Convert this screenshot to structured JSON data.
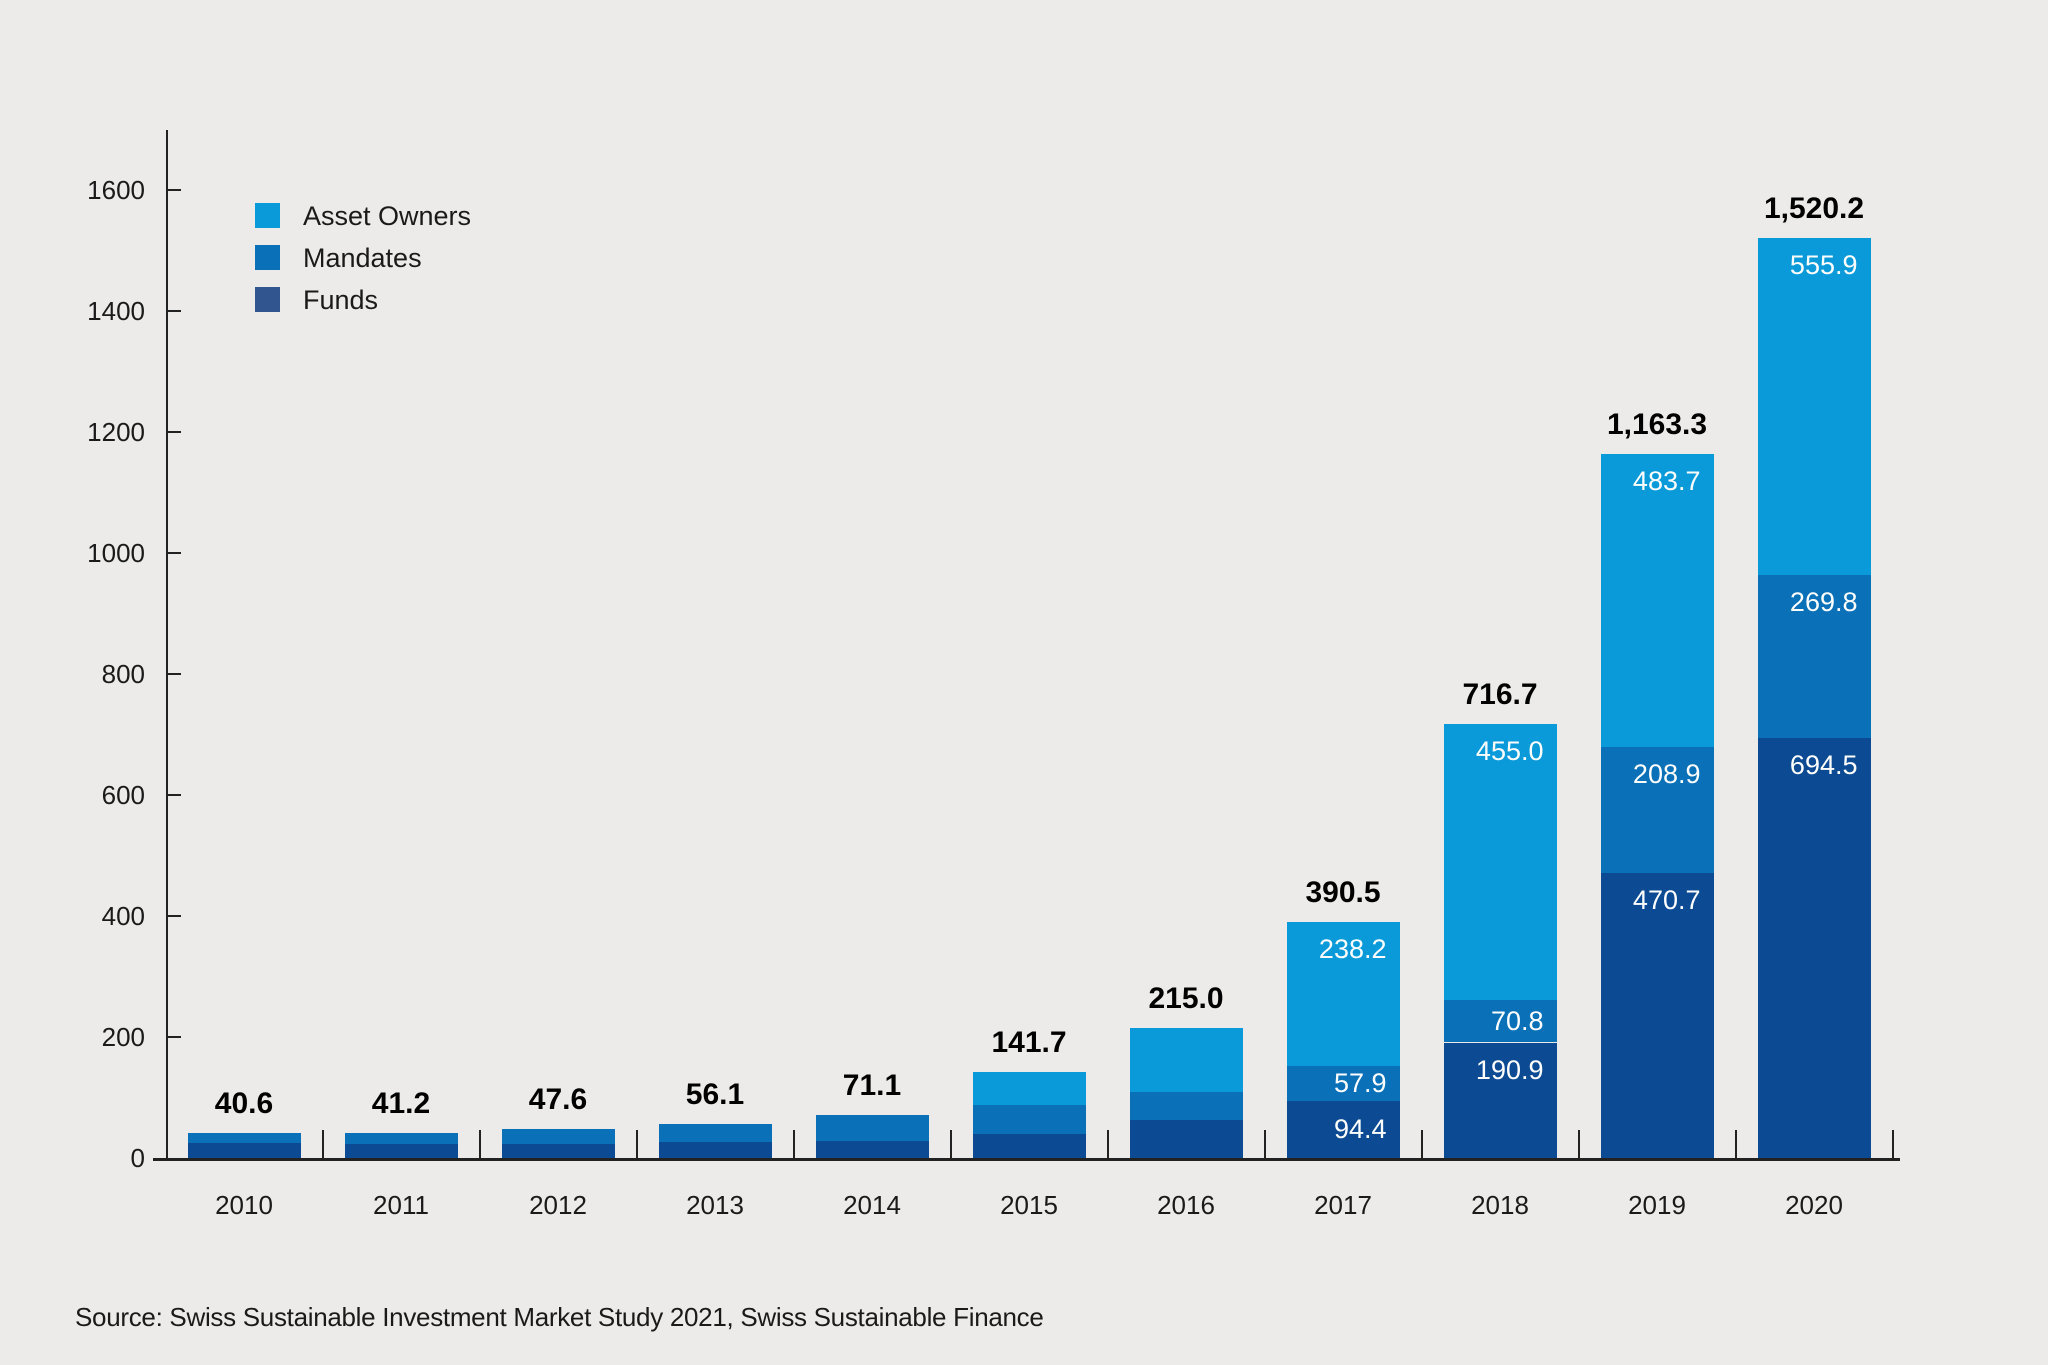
{
  "colors": {
    "background": "#ECEBE9",
    "axis": "#222222",
    "text": "#1A1A1A",
    "total_label": "#000000",
    "segment_label": "#FFFFFF",
    "asset_owners": "#0A9ADA",
    "mandates": "#0A70B8",
    "funds": "#0C4B94",
    "funds_legend_swatch": "#31568F"
  },
  "legend": {
    "items": [
      {
        "label": "Asset Owners",
        "color_key": "asset_owners"
      },
      {
        "label": "Mandates",
        "color_key": "mandates"
      },
      {
        "label": "Funds",
        "color_key": "funds_legend_swatch"
      }
    ]
  },
  "source_note": "Source: Swiss Sustainable Investment Market Study 2021, Swiss Sustainable Finance",
  "chart_data": {
    "type": "bar",
    "stacked": true,
    "grid": false,
    "legend_position": "top-left",
    "categories": [
      "2010",
      "2011",
      "2012",
      "2013",
      "2014",
      "2015",
      "2016",
      "2017",
      "2018",
      "2019",
      "2020"
    ],
    "series": [
      {
        "name": "Funds",
        "color_key": "funds",
        "values": [
          24.2,
          22.9,
          22.6,
          27.1,
          28.6,
          39.0,
          63.3,
          94.4,
          190.9,
          470.7,
          694.5
        ],
        "value_labels": [
          null,
          null,
          null,
          null,
          null,
          null,
          null,
          "94.4",
          "190.9",
          "470.7",
          "694.5"
        ]
      },
      {
        "name": "Mandates",
        "color_key": "mandates",
        "values": [
          16.4,
          18.3,
          25.0,
          29.0,
          42.5,
          48.6,
          46.1,
          57.9,
          70.8,
          208.9,
          269.8
        ],
        "value_labels": [
          null,
          null,
          null,
          null,
          null,
          null,
          null,
          "57.9",
          "70.8",
          "208.9",
          "269.8"
        ]
      },
      {
        "name": "Asset Owners",
        "color_key": "asset_owners",
        "values": [
          0,
          0,
          0,
          0,
          0,
          54.1,
          105.6,
          238.2,
          455.0,
          483.7,
          555.9
        ],
        "value_labels": [
          null,
          null,
          null,
          null,
          null,
          null,
          null,
          "238.2",
          "455.0",
          "483.7",
          "555.9"
        ]
      }
    ],
    "totals": [
      40.6,
      41.2,
      47.6,
      56.1,
      71.1,
      141.7,
      215.0,
      390.5,
      716.7,
      1163.3,
      1520.2
    ],
    "total_labels": [
      "40.6",
      "41.2",
      "47.6",
      "56.1",
      "71.1",
      "141.7",
      "215.0",
      "390.5",
      "716.7",
      "1,163.3",
      "1,520.2"
    ],
    "y_ticks": [
      0,
      200,
      400,
      600,
      800,
      1000,
      1200,
      1400,
      1600
    ],
    "ylim": [
      0,
      1700
    ]
  }
}
